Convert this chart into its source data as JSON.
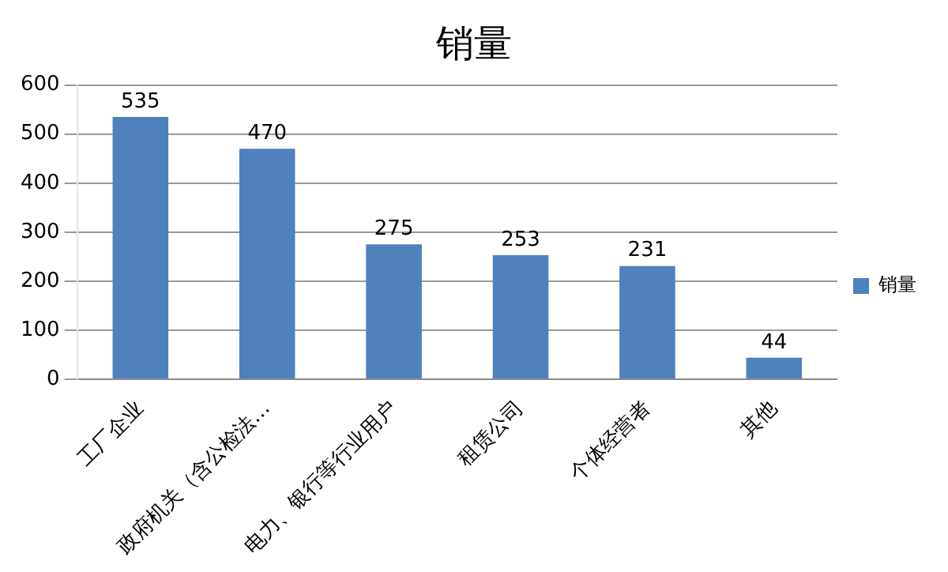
{
  "chart_data": {
    "type": "bar",
    "title": "销量",
    "categories": [
      "工厂企业",
      "政府机关（含公检法…",
      "电力、银行等行业用户",
      "租赁公司",
      "个体经营者",
      "其他"
    ],
    "series": [
      {
        "name": "销量",
        "color": "#4f81bd",
        "values": [
          535,
          470,
          275,
          253,
          231,
          44
        ]
      }
    ],
    "ylim": [
      0,
      600
    ],
    "yticks": [
      0,
      100,
      200,
      300,
      400,
      500,
      600
    ],
    "grid": "y",
    "legend": "right",
    "data_labels": true
  }
}
